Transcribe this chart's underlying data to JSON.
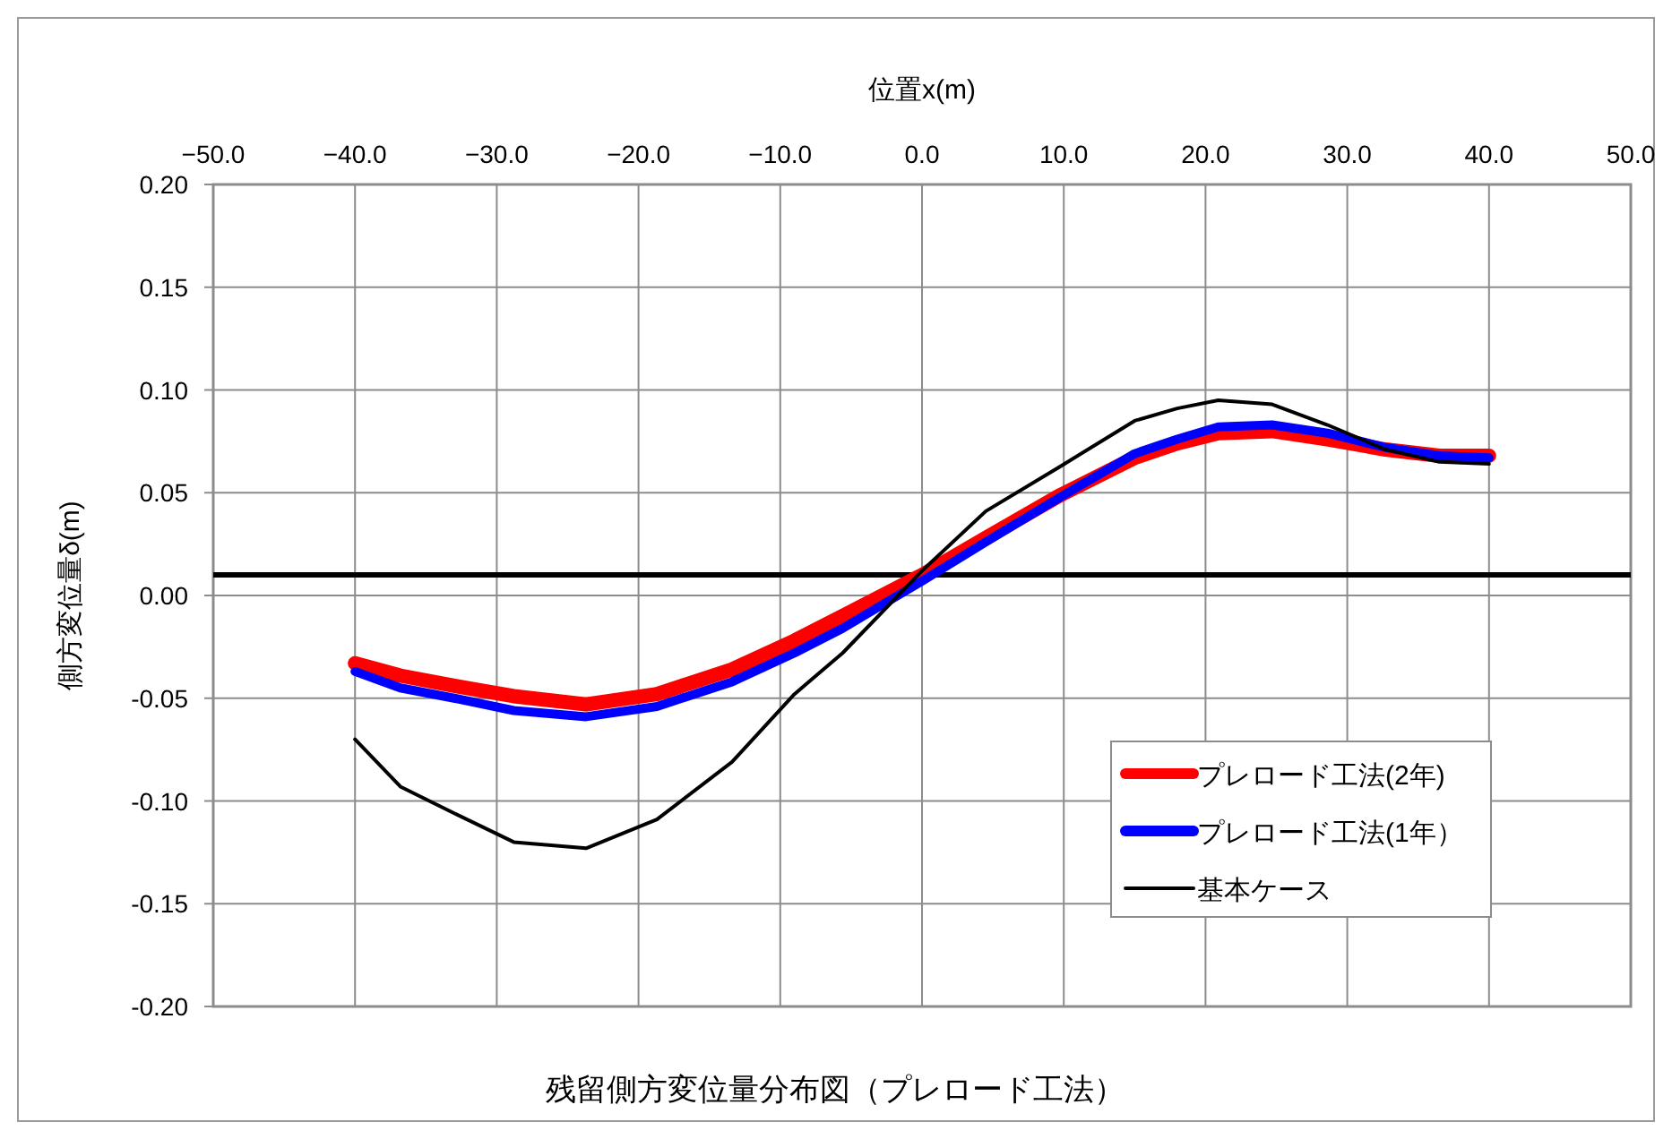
{
  "chart_data": {
    "type": "line",
    "title": "残留側方変位量分布図（プレロード工法）",
    "xlabel": "位置x(m)",
    "ylabel": "側方変位量δ(m)",
    "x": [
      -40,
      -36.8,
      -33,
      -28.8,
      -23.7,
      -18.7,
      -13.4,
      -9,
      -5.6,
      0,
      4.5,
      9.8,
      15,
      18,
      20.9,
      24.7,
      28.6,
      32.7,
      36.5,
      40
    ],
    "series": [
      {
        "name": "プレロード工法(2年)",
        "color": "#ff0000",
        "values": [
          -0.033,
          -0.039,
          -0.044,
          -0.049,
          -0.053,
          -0.048,
          -0.036,
          -0.022,
          -0.01,
          0.01,
          0.028,
          0.049,
          0.067,
          0.074,
          0.079,
          0.08,
          0.076,
          0.071,
          0.068,
          0.068
        ]
      },
      {
        "name": "プレロード工法(1年）",
        "color": "#0000ff",
        "values": [
          -0.037,
          -0.045,
          -0.05,
          -0.056,
          -0.059,
          -0.054,
          -0.042,
          -0.028,
          -0.016,
          0.007,
          0.026,
          0.048,
          0.069,
          0.076,
          0.082,
          0.083,
          0.079,
          0.072,
          0.068,
          0.067
        ]
      },
      {
        "name": "基本ケース",
        "color": "#000000",
        "values": [
          -0.07,
          -0.093,
          -0.106,
          -0.12,
          -0.123,
          -0.109,
          -0.081,
          -0.048,
          -0.028,
          0.012,
          0.041,
          0.063,
          0.085,
          0.091,
          0.095,
          0.093,
          0.083,
          0.071,
          0.065,
          0.064
        ]
      }
    ],
    "xlim": [
      -50,
      50
    ],
    "xticks": [
      {
        "value": -50,
        "label": "−50.0"
      },
      {
        "value": -40,
        "label": "−40.0"
      },
      {
        "value": -30,
        "label": "−30.0"
      },
      {
        "value": -20,
        "label": "−20.0"
      },
      {
        "value": -10,
        "label": "−10.0"
      },
      {
        "value": 0,
        "label": "0.0"
      },
      {
        "value": 10,
        "label": "10.0"
      },
      {
        "value": 20,
        "label": "20.0"
      },
      {
        "value": 30,
        "label": "30.0"
      },
      {
        "value": 40,
        "label": "40.0"
      },
      {
        "value": 50,
        "label": "50.0"
      }
    ],
    "ylim": [
      -0.2,
      0.2
    ],
    "yticks": [
      {
        "value": 0.2,
        "label": "0.20"
      },
      {
        "value": 0.15,
        "label": "0.15"
      },
      {
        "value": 0.1,
        "label": "0.10"
      },
      {
        "value": 0.05,
        "label": "0.05"
      },
      {
        "value": 0,
        "label": "0.00"
      },
      {
        "value": -0.05,
        "label": "-0.05"
      },
      {
        "value": -0.1,
        "label": "-0.10"
      },
      {
        "value": -0.15,
        "label": "-0.15"
      },
      {
        "value": -0.2,
        "label": "-0.20"
      }
    ],
    "ref_lines": [
      {
        "axis": "y",
        "value": 0.01,
        "color": "#000000"
      }
    ],
    "grid": true,
    "legend": "bottom right",
    "marker": "none",
    "line_style": "solid"
  }
}
